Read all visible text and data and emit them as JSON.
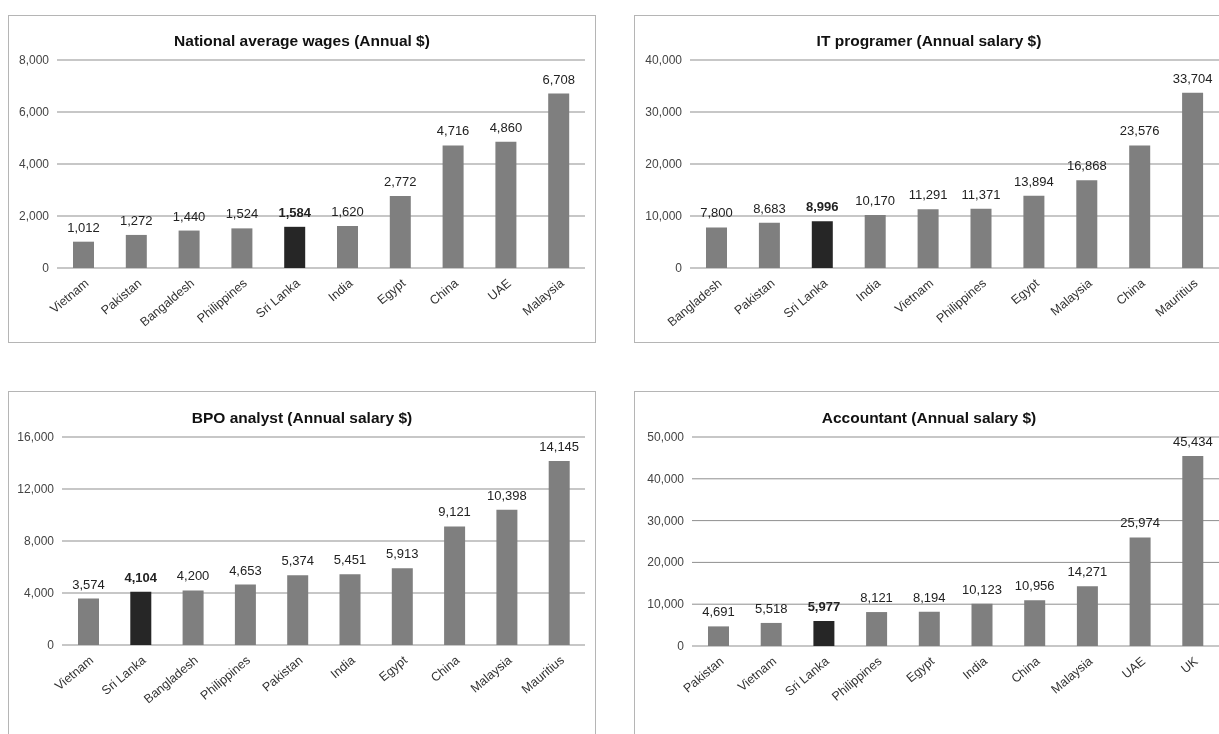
{
  "chart_data": [
    {
      "type": "bar",
      "title": "National average wages (Annual $)",
      "categories": [
        "Vietnam",
        "Pakistan",
        "Bangaldesh",
        "Philippines",
        "Sri Lanka",
        "India",
        "Egypt",
        "China",
        "UAE",
        "Malaysia"
      ],
      "values": [
        1012,
        1272,
        1440,
        1524,
        1584,
        1620,
        2772,
        4716,
        4860,
        6708
      ],
      "colors": [
        "#7f7f7f",
        "#7f7f7f",
        "#7f7f7f",
        "#7f7f7f",
        "#262626",
        "#7f7f7f",
        "#7f7f7f",
        "#7f7f7f",
        "#7f7f7f",
        "#7f7f7f"
      ],
      "value_labels": [
        "1,012",
        "1,272",
        "1,440",
        "1,524",
        "1,584",
        "1,620",
        "2,772",
        "4,716",
        "4,860",
        "6,708"
      ],
      "ylim": [
        0,
        8000
      ],
      "yticks": [
        {
          "value": 0,
          "label": "0"
        },
        {
          "value": 2000,
          "label": "2,000"
        },
        {
          "value": 4000,
          "label": "4,000"
        },
        {
          "value": 6000,
          "label": "6,000"
        },
        {
          "value": 8000,
          "label": "8,000"
        }
      ],
      "grid": "y"
    },
    {
      "type": "bar",
      "title": "IT programer (Annual salary $)",
      "categories": [
        "Bangladesh",
        "Pakistan",
        "Sri Lanka",
        "India",
        "Vietnam",
        "Philippines",
        "Egypt",
        "Malaysia",
        "China",
        "Mauritius"
      ],
      "values": [
        7800,
        8683,
        8996,
        10170,
        11291,
        11371,
        13894,
        16868,
        23576,
        33704
      ],
      "colors": [
        "#7f7f7f",
        "#7f7f7f",
        "#262626",
        "#7f7f7f",
        "#7f7f7f",
        "#7f7f7f",
        "#7f7f7f",
        "#7f7f7f",
        "#7f7f7f",
        "#7f7f7f"
      ],
      "value_labels": [
        "7,800",
        "8,683",
        "8,996",
        "10,170",
        "11,291",
        "11,371",
        "13,894",
        "16,868",
        "23,576",
        "33,704"
      ],
      "ylim": [
        0,
        40000
      ],
      "yticks": [
        {
          "value": 0,
          "label": "0"
        },
        {
          "value": 10000,
          "label": "10,000"
        },
        {
          "value": 20000,
          "label": "20,000"
        },
        {
          "value": 30000,
          "label": "30,000"
        },
        {
          "value": 40000,
          "label": "40,000"
        }
      ],
      "grid": "y"
    },
    {
      "type": "bar",
      "title": "BPO analyst (Annual salary $)",
      "categories": [
        "Vietnam",
        "Sri Lanka",
        "Bangladesh",
        "Philippines",
        "Pakistan",
        "India",
        "Egypt",
        "China",
        "Malaysia",
        "Mauritius"
      ],
      "values": [
        3574,
        4104,
        4200,
        4653,
        5374,
        5451,
        5913,
        9121,
        10398,
        14145
      ],
      "colors": [
        "#7f7f7f",
        "#262626",
        "#7f7f7f",
        "#7f7f7f",
        "#7f7f7f",
        "#7f7f7f",
        "#7f7f7f",
        "#7f7f7f",
        "#7f7f7f",
        "#7f7f7f"
      ],
      "value_labels": [
        "3,574",
        "4,104",
        "4,200",
        "4,653",
        "5,374",
        "5,451",
        "5,913",
        "9,121",
        "10,398",
        "14,145"
      ],
      "ylim": [
        0,
        16000
      ],
      "yticks": [
        {
          "value": 0,
          "label": "0"
        },
        {
          "value": 4000,
          "label": "4,000"
        },
        {
          "value": 8000,
          "label": "8,000"
        },
        {
          "value": 12000,
          "label": "12,000"
        },
        {
          "value": 16000,
          "label": "16,000"
        }
      ],
      "grid": "y"
    },
    {
      "type": "bar",
      "title": "Accountant (Annual salary $)",
      "categories": [
        "Pakistan",
        "Vietnam",
        "Sri Lanka",
        "Philippines",
        "Egypt",
        "India",
        "China",
        "Malaysia",
        "UAE",
        "UK"
      ],
      "values": [
        4691,
        5518,
        5977,
        8121,
        8194,
        10123,
        10956,
        14271,
        25974,
        45434
      ],
      "colors": [
        "#7f7f7f",
        "#7f7f7f",
        "#262626",
        "#7f7f7f",
        "#7f7f7f",
        "#7f7f7f",
        "#7f7f7f",
        "#7f7f7f",
        "#7f7f7f",
        "#7f7f7f"
      ],
      "value_labels": [
        "4,691",
        "5,518",
        "5,977",
        "8,121",
        "8,194",
        "10,123",
        "10,956",
        "14,271",
        "25,974",
        "45,434"
      ],
      "ylim": [
        0,
        50000
      ],
      "yticks": [
        {
          "value": 0,
          "label": "0"
        },
        {
          "value": 10000,
          "label": "10,000"
        },
        {
          "value": 20000,
          "label": "20,000"
        },
        {
          "value": 30000,
          "label": "30,000"
        },
        {
          "value": 40000,
          "label": "40,000"
        },
        {
          "value": 50000,
          "label": "50,000"
        }
      ],
      "grid": "y"
    }
  ]
}
